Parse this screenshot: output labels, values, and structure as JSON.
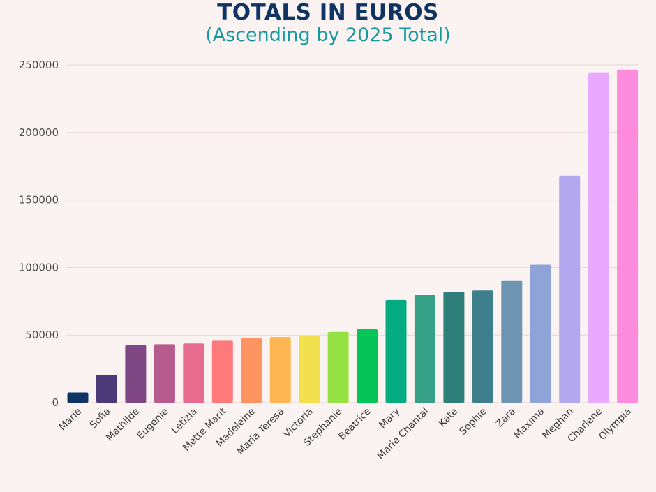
{
  "chart_data": {
    "type": "bar",
    "title": "TOTALS IN EUROS",
    "subtitle": "(Ascending by 2025 Total)",
    "xlabel": "",
    "ylabel": "",
    "ylim": [
      0,
      250000
    ],
    "yticks": [
      0,
      50000,
      100000,
      150000,
      200000,
      250000
    ],
    "grid": true,
    "legend": "none",
    "categories": [
      "Marie",
      "Sofia",
      "Mathilde",
      "Eugenie",
      "Letizia",
      "Mette Marit",
      "Madeleine",
      "Maria Teresa",
      "Victoria",
      "Stephanie",
      "Beatrice",
      "Mary",
      "Marie Chantal",
      "Kate",
      "Sophie",
      "Zara",
      "Maxima",
      "Meghan",
      "Charlene",
      "Olympia"
    ],
    "values": [
      7500,
      20500,
      42500,
      43200,
      43800,
      46300,
      48000,
      48500,
      49300,
      52300,
      54300,
      76000,
      80000,
      82000,
      83000,
      90500,
      102000,
      168000,
      244500,
      246500
    ],
    "colors": [
      "#0f3463",
      "#4a3b78",
      "#7f4783",
      "#b75a8e",
      "#e76a8f",
      "#fe797a",
      "#ff9462",
      "#ffb652",
      "#f2e14c",
      "#96e244",
      "#05c458",
      "#06ac81",
      "#37a187",
      "#2e7e79",
      "#3e7f8c",
      "#6e96b3",
      "#8ea4d6",
      "#b3a7ef",
      "#e9a9fc",
      "#ff8bdc"
    ]
  }
}
